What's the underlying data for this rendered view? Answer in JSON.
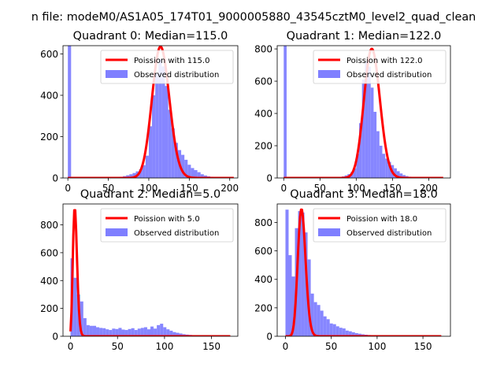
{
  "figure": {
    "suptitle": "n file: modeM0/AS1A05_174T01_9000005880_43545cztM0_level2_quad_clean"
  },
  "chart_data": [
    {
      "type": "bar",
      "title": "Quadrant 0: Median=115.0",
      "xlim": [
        -6,
        210
      ],
      "ylim": [
        0,
        640
      ],
      "xticks": [
        0,
        50,
        100,
        150,
        200
      ],
      "yticks": [
        0,
        200,
        400,
        600
      ],
      "legend": {
        "placement": "top-right",
        "entries": [
          "Poission with 115.0",
          "Observed distribution"
        ]
      },
      "colors": {
        "histogram": "#7f7fff",
        "poisson": "#ff0000"
      },
      "hist_bin_width": 4,
      "hist_bins": [
        0,
        4,
        8,
        12,
        16,
        20,
        24,
        28,
        32,
        36,
        40,
        44,
        48,
        52,
        56,
        60,
        64,
        68,
        72,
        76,
        80,
        84,
        88,
        92,
        96,
        100,
        104,
        108,
        112,
        116,
        120,
        124,
        128,
        132,
        136,
        140,
        144,
        148,
        152,
        156,
        160,
        164,
        168,
        172,
        176,
        180,
        184,
        188,
        192,
        196,
        200
      ],
      "hist_counts": [
        640,
        0,
        0,
        0,
        0,
        0,
        0,
        0,
        0,
        0,
        0,
        0,
        0,
        0,
        3,
        4,
        6,
        9,
        13,
        18,
        24,
        32,
        42,
        62,
        108,
        250,
        400,
        505,
        575,
        540,
        445,
        330,
        240,
        170,
        135,
        112,
        88,
        64,
        48,
        38,
        28,
        18,
        12,
        8,
        6,
        4,
        3,
        2,
        1,
        1,
        1
      ],
      "poisson_lambda": 115.0,
      "poisson_peak": 635,
      "poisson_xrange": [
        0,
        205
      ]
    },
    {
      "type": "bar",
      "title": "Quadrant 1: Median=122.0",
      "xlim": [
        -9,
        230
      ],
      "ylim": [
        0,
        820
      ],
      "xticks": [
        0,
        50,
        100,
        150,
        200
      ],
      "yticks": [
        0,
        200,
        400,
        600,
        800
      ],
      "legend": {
        "placement": "top-right",
        "entries": [
          "Poission with 122.0",
          "Observed distribution"
        ]
      },
      "colors": {
        "histogram": "#7f7fff",
        "poisson": "#ff0000"
      },
      "hist_bin_width": 4,
      "hist_bins": [
        0,
        4,
        8,
        12,
        16,
        20,
        24,
        28,
        32,
        36,
        40,
        44,
        48,
        52,
        56,
        60,
        64,
        68,
        72,
        76,
        80,
        84,
        88,
        92,
        96,
        100,
        104,
        108,
        112,
        116,
        120,
        124,
        128,
        132,
        136,
        140,
        144,
        148,
        152,
        156,
        160,
        164,
        168,
        172,
        176,
        180,
        184,
        188,
        192,
        196,
        200,
        204,
        208,
        212
      ],
      "hist_counts": [
        820,
        0,
        0,
        0,
        0,
        0,
        0,
        0,
        0,
        0,
        0,
        0,
        0,
        0,
        0,
        0,
        2,
        3,
        5,
        7,
        10,
        16,
        24,
        35,
        60,
        150,
        340,
        610,
        720,
        690,
        560,
        410,
        290,
        200,
        150,
        120,
        100,
        80,
        60,
        42,
        28,
        18,
        12,
        8,
        5,
        3,
        2,
        1,
        1,
        1,
        0,
        0,
        0,
        1
      ],
      "poisson_lambda": 122.0,
      "poisson_peak": 800,
      "poisson_xrange": [
        0,
        220
      ]
    },
    {
      "type": "bar",
      "title": "Quadrant 2: Median=5.0",
      "xlim": [
        -8,
        178
      ],
      "ylim": [
        0,
        950
      ],
      "xticks": [
        0,
        50,
        100,
        150
      ],
      "yticks": [
        0,
        200,
        400,
        600,
        800
      ],
      "legend": {
        "placement": "top-right",
        "entries": [
          "Poission with 5.0",
          "Observed distribution"
        ]
      },
      "colors": {
        "histogram": "#7f7fff",
        "poisson": "#ff0000"
      },
      "hist_bin_width": 3.4,
      "hist_bins": [
        0,
        3.4,
        6.8,
        10.2,
        13.6,
        17,
        20.4,
        23.8,
        27.2,
        30.6,
        34,
        37.4,
        40.8,
        44.2,
        47.6,
        51,
        54.4,
        57.8,
        61.2,
        64.6,
        68,
        71.4,
        74.8,
        78.2,
        81.6,
        85,
        88.4,
        91.8,
        95.2,
        98.6,
        102,
        105.4,
        108.8,
        112.2,
        115.6,
        119,
        122.4,
        125.8,
        129.2,
        132.6,
        136,
        139.4,
        142.8,
        146.2,
        149.6,
        153,
        156.4,
        159.8,
        163.2,
        166.6
      ],
      "hist_counts": [
        560,
        420,
        300,
        250,
        130,
        80,
        75,
        75,
        65,
        60,
        58,
        50,
        45,
        55,
        52,
        60,
        48,
        45,
        52,
        58,
        45,
        55,
        60,
        65,
        50,
        70,
        55,
        80,
        90,
        65,
        50,
        40,
        30,
        25,
        20,
        15,
        12,
        10,
        8,
        6,
        5,
        4,
        3,
        3,
        2,
        2,
        1,
        1,
        1,
        1
      ],
      "poisson_lambda": 5.0,
      "poisson_peak": 905,
      "poisson_xrange": [
        0,
        170
      ]
    },
    {
      "type": "bar",
      "title": "Quadrant 3: Median=18.0",
      "xlim": [
        -9,
        180
      ],
      "ylim": [
        0,
        930
      ],
      "xticks": [
        0,
        50,
        100,
        150
      ],
      "yticks": [
        0,
        200,
        400,
        600,
        800
      ],
      "legend": {
        "placement": "top-right",
        "entries": [
          "Poission with 18.0",
          "Observed distribution"
        ]
      },
      "colors": {
        "histogram": "#7f7fff",
        "poisson": "#ff0000"
      },
      "hist_bin_width": 3.45,
      "hist_bins": [
        0,
        3.45,
        6.9,
        10.35,
        13.8,
        17.25,
        20.7,
        24.15,
        27.6,
        31.05,
        34.5,
        37.95,
        41.4,
        44.85,
        48.3,
        51.75,
        55.2,
        58.65,
        62.1,
        65.55,
        69,
        72.45,
        75.9,
        79.35,
        82.8,
        86.25,
        89.7,
        93.15,
        96.6,
        100.05,
        103.5,
        106.95,
        110.4,
        113.85,
        117.3,
        120.75,
        124.2,
        127.65,
        131.1,
        134.55,
        138,
        141.45,
        144.9,
        148.35,
        151.8,
        155.25,
        158.7,
        162.15,
        165.6,
        169.05
      ],
      "hist_counts": [
        890,
        570,
        420,
        760,
        880,
        870,
        730,
        540,
        300,
        240,
        220,
        180,
        140,
        120,
        90,
        85,
        70,
        60,
        55,
        40,
        35,
        28,
        22,
        18,
        14,
        11,
        9,
        7,
        6,
        5,
        4,
        3,
        3,
        2,
        2,
        2,
        1,
        1,
        1,
        1,
        1,
        1,
        1,
        0,
        0,
        0,
        0,
        0,
        0,
        0
      ],
      "poisson_lambda": 18.0,
      "poisson_peak": 890,
      "poisson_xrange": [
        0,
        170
      ]
    }
  ]
}
